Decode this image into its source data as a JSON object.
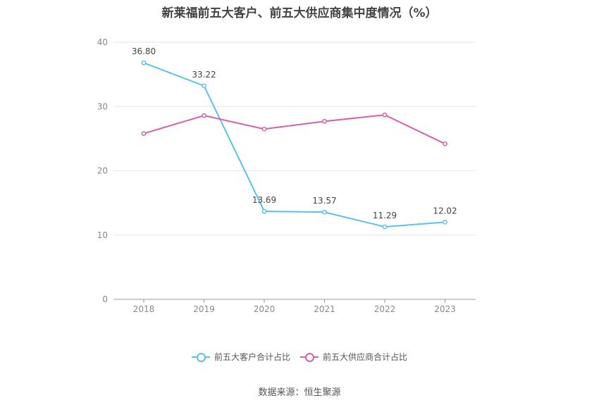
{
  "chart_data": {
    "type": "line",
    "title": "新莱福前五大客户、前五大供应商集中度情况（%）",
    "categories": [
      "2018",
      "2019",
      "2020",
      "2021",
      "2022",
      "2023"
    ],
    "series": [
      {
        "name": "前五大客户合计占比",
        "color": "#5bc0f0",
        "values": [
          36.8,
          33.22,
          13.69,
          13.57,
          11.29,
          12.02
        ],
        "labels": [
          "36.80",
          "33.22",
          "13.69",
          "13.57",
          "11.29",
          "12.02"
        ],
        "show_labels": true
      },
      {
        "name": "前五大供应商合计占比",
        "color": "#d45fab",
        "values": [
          25.8,
          28.6,
          26.5,
          27.7,
          28.7,
          24.2
        ],
        "show_labels": false
      }
    ],
    "ylim": [
      0,
      40
    ],
    "yticks": [
      "0",
      "10",
      "20",
      "30",
      "40"
    ],
    "grid": true,
    "legend_position": "bottom"
  },
  "source": "数据来源：恒生聚源"
}
